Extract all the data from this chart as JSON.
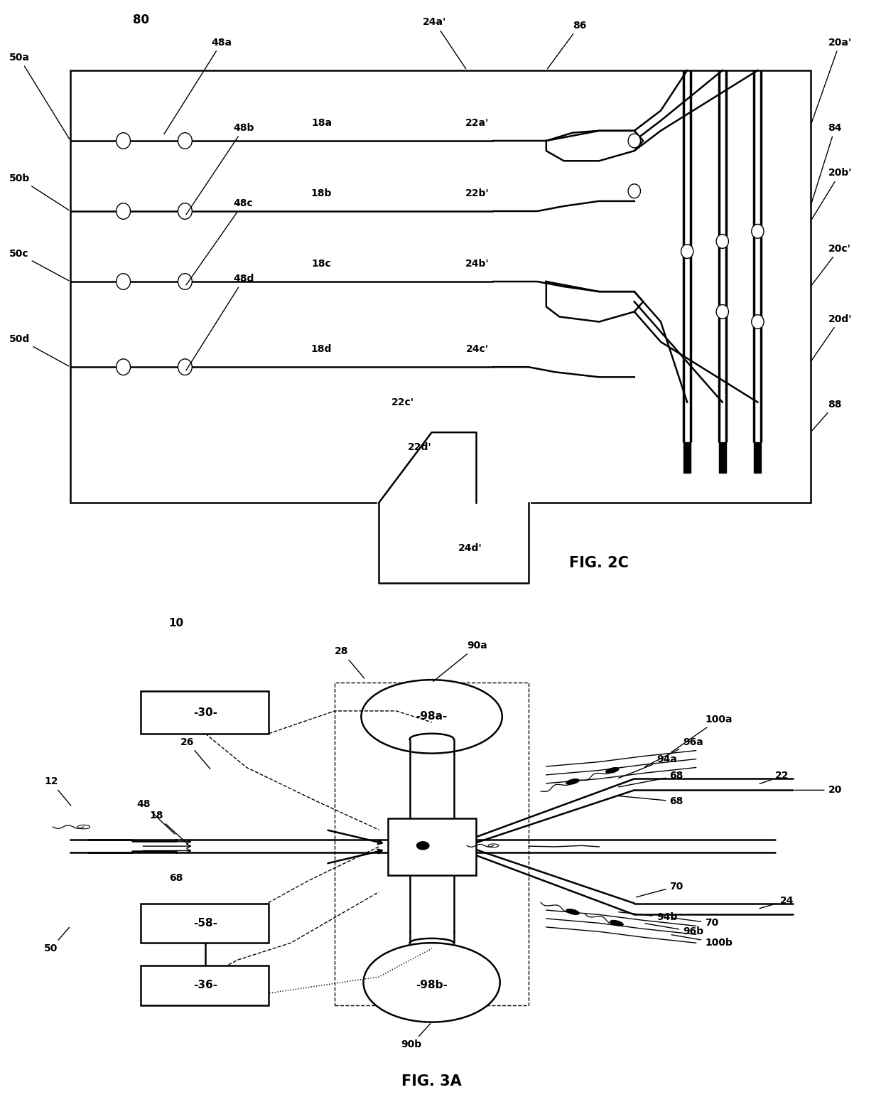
{
  "bg_color": "#ffffff",
  "lw_thin": 1.0,
  "lw_med": 1.8,
  "lw_thick": 2.5,
  "fig2c_title": "FIG. 2C",
  "fig3a_title": "FIG. 3A",
  "label_80": "80",
  "label_font": 10,
  "title_font": 16
}
